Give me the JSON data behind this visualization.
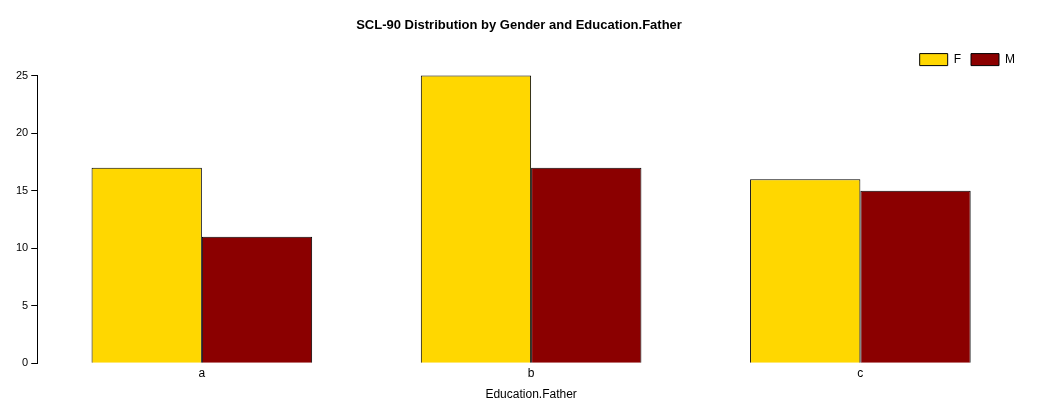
{
  "chart_data": {
    "type": "bar",
    "title": "SCL-90 Distribution by Gender and Education.Father",
    "xlabel": "Education.Father",
    "categories": [
      "a",
      "b",
      "c"
    ],
    "series": [
      {
        "name": "F",
        "color": "#ffd700",
        "values": [
          17,
          25,
          16
        ]
      },
      {
        "name": "M",
        "color": "#8b0000",
        "values": [
          11,
          17,
          15
        ]
      }
    ],
    "ylim": [
      0,
      25
    ],
    "yticks": [
      0,
      5,
      10,
      15,
      20,
      25
    ],
    "grid": false,
    "legend": "top right"
  }
}
